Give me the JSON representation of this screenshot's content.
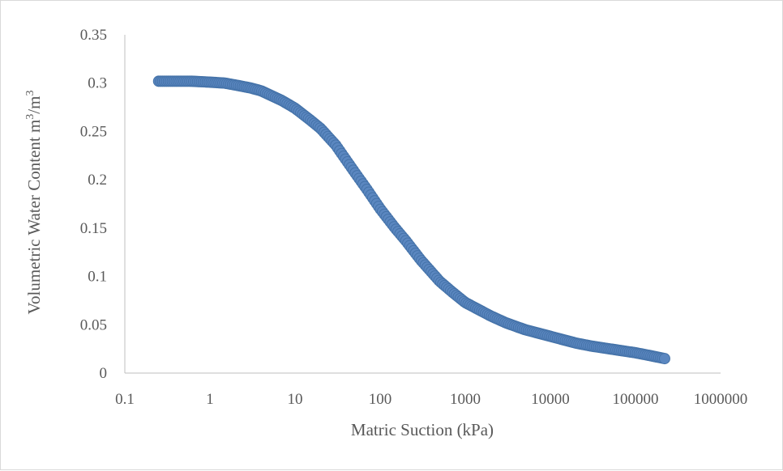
{
  "chart_data": {
    "type": "scatter",
    "xlabel": "Matric Suction (kPa)",
    "ylabel": "Volumetric Water Content m",
    "ylabel_sup1": "3",
    "ylabel_mid": "/m",
    "ylabel_sup2": "3",
    "x_scale": "log",
    "xlim": [
      0.1,
      1000000
    ],
    "ylim": [
      0,
      0.35
    ],
    "x_ticks": [
      "0.1",
      "1",
      "10",
      "100",
      "1000",
      "10000",
      "100000",
      "1000000"
    ],
    "y_ticks": [
      "0",
      "0.05",
      "0.1",
      "0.15",
      "0.2",
      "0.25",
      "0.3",
      "0.35"
    ],
    "grid": false,
    "legend": "none",
    "marker_color": "#5b87c0",
    "marker_edge_color": "#4472a8",
    "series": [
      {
        "x": [
          0.25,
          0.4,
          0.6,
          1,
          1.5,
          2,
          3,
          4,
          5,
          7,
          10,
          15,
          20,
          30,
          50,
          70,
          100,
          150,
          200,
          300,
          500,
          700,
          1000,
          2000,
          3000,
          5000,
          10000,
          20000,
          30000,
          50000,
          100000,
          150000,
          220000
        ],
        "y": [
          0.302,
          0.302,
          0.302,
          0.301,
          0.3,
          0.298,
          0.295,
          0.292,
          0.288,
          0.282,
          0.274,
          0.262,
          0.253,
          0.236,
          0.208,
          0.19,
          0.17,
          0.15,
          0.137,
          0.117,
          0.095,
          0.084,
          0.073,
          0.059,
          0.052,
          0.045,
          0.038,
          0.031,
          0.028,
          0.025,
          0.021,
          0.018,
          0.015
        ]
      }
    ]
  }
}
